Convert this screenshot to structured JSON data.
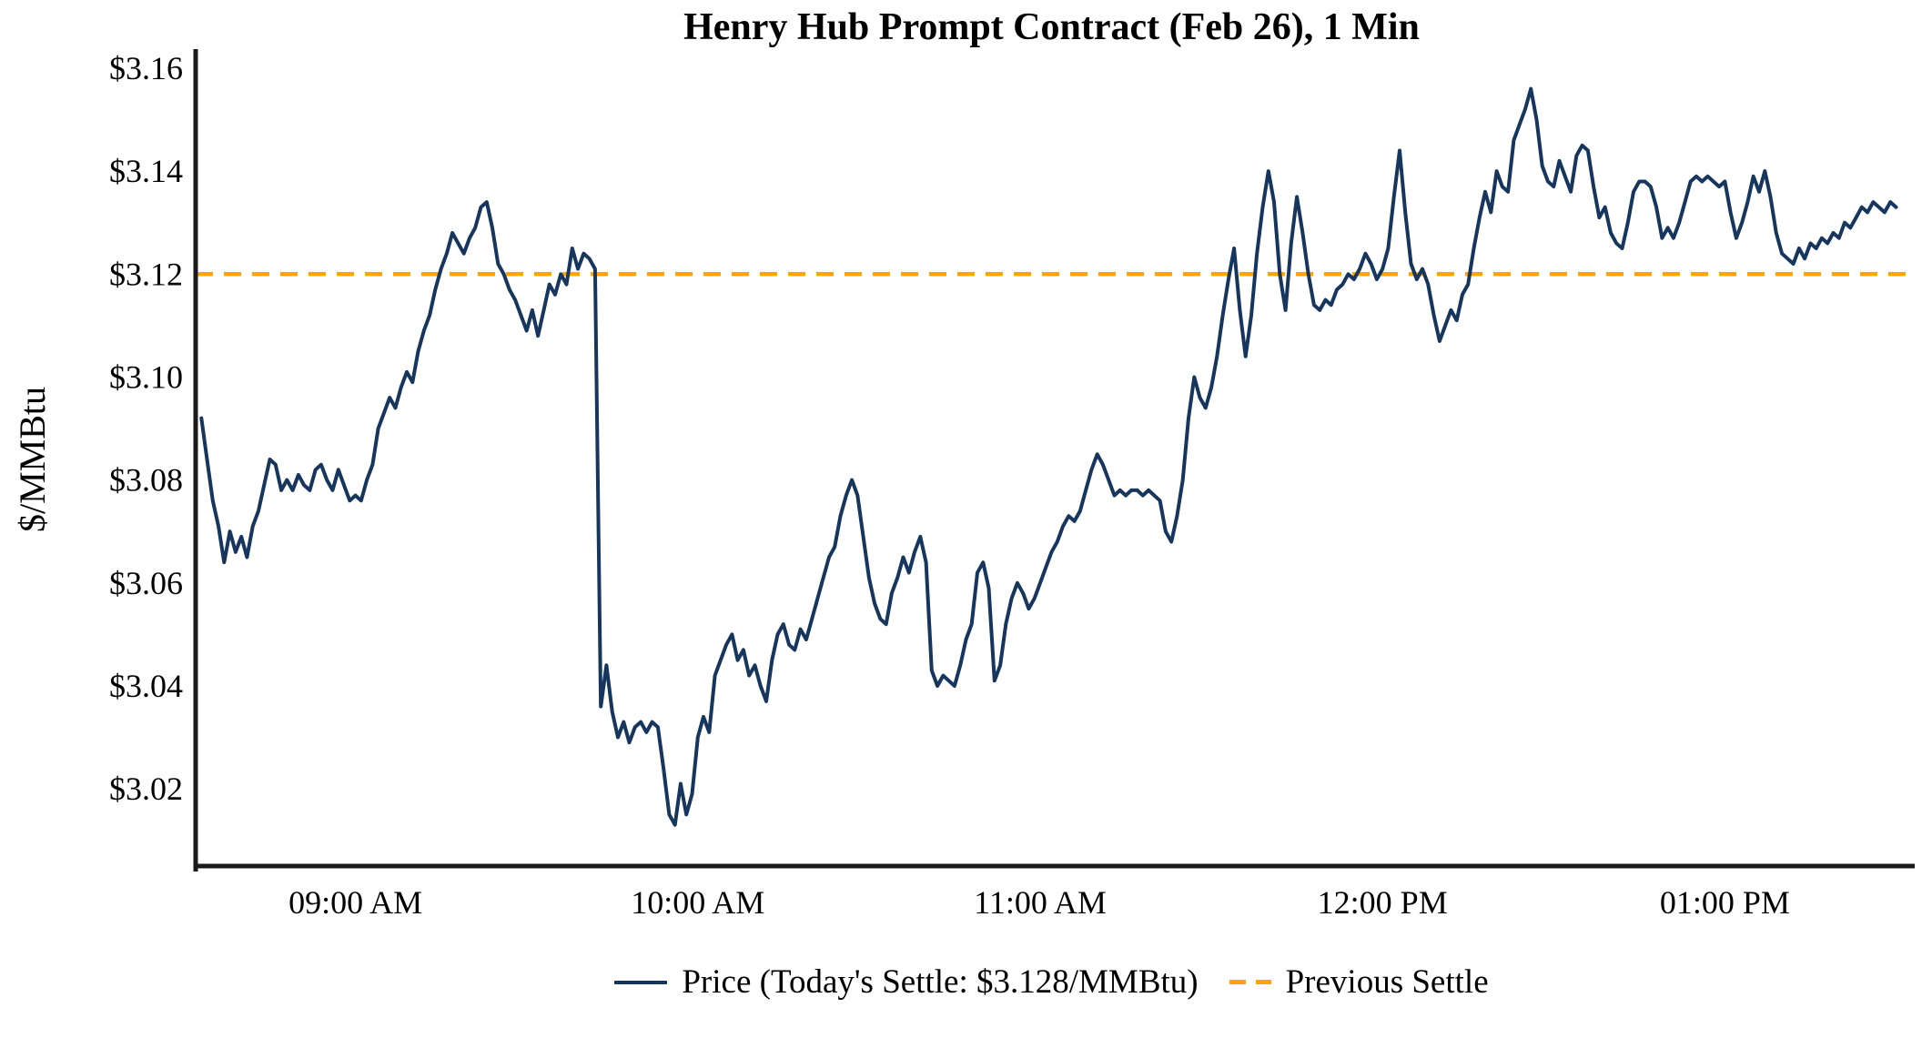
{
  "title": "Henry Hub Prompt Contract (Feb 26), 1 Min",
  "y_axis_label": "$/MMBtu",
  "legend": {
    "price_label": "Price (Today's Settle: $3.128/MMBtu)",
    "previous_settle_label": "Previous Settle"
  },
  "colors": {
    "price_line": "#17365d",
    "previous_settle": "#FFA500",
    "axis": "#1a1a1a",
    "text": "#000000"
  },
  "chart_data": {
    "type": "line",
    "title": "Henry Hub Prompt Contract (Feb 26), 1 Min",
    "xlabel": "",
    "ylabel": "$/MMBtu",
    "grid": false,
    "legend_position": "bottom",
    "x_unit": "minutes since midnight, 1-minute bars",
    "xlim": [
      512,
      812
    ],
    "ylim": [
      3.005,
      3.163
    ],
    "previous_settle": 3.12,
    "todays_settle": 3.128,
    "y_ticks": [
      {
        "value": 3.02,
        "label": "$3.02"
      },
      {
        "value": 3.04,
        "label": "$3.04"
      },
      {
        "value": 3.06,
        "label": "$3.06"
      },
      {
        "value": 3.08,
        "label": "$3.08"
      },
      {
        "value": 3.1,
        "label": "$3.10"
      },
      {
        "value": 3.12,
        "label": "$3.12"
      },
      {
        "value": 3.14,
        "label": "$3.14"
      },
      {
        "value": 3.16,
        "label": "$3.16"
      }
    ],
    "x_ticks": [
      {
        "value": 540,
        "label": "09:00 AM"
      },
      {
        "value": 600,
        "label": "10:00 AM"
      },
      {
        "value": 660,
        "label": "11:00 AM"
      },
      {
        "value": 720,
        "label": "12:00 PM"
      },
      {
        "value": 780,
        "label": "01:00 PM"
      }
    ],
    "series": [
      {
        "name": "Price",
        "points": [
          [
            513,
            3.092
          ],
          [
            514,
            3.084
          ],
          [
            515,
            3.076
          ],
          [
            516,
            3.071
          ],
          [
            517,
            3.064
          ],
          [
            518,
            3.07
          ],
          [
            519,
            3.066
          ],
          [
            520,
            3.069
          ],
          [
            521,
            3.065
          ],
          [
            522,
            3.071
          ],
          [
            523,
            3.074
          ],
          [
            524,
            3.079
          ],
          [
            525,
            3.084
          ],
          [
            526,
            3.083
          ],
          [
            527,
            3.078
          ],
          [
            528,
            3.08
          ],
          [
            529,
            3.078
          ],
          [
            530,
            3.081
          ],
          [
            531,
            3.079
          ],
          [
            532,
            3.078
          ],
          [
            533,
            3.082
          ],
          [
            534,
            3.083
          ],
          [
            535,
            3.08
          ],
          [
            536,
            3.078
          ],
          [
            537,
            3.082
          ],
          [
            538,
            3.079
          ],
          [
            539,
            3.076
          ],
          [
            540,
            3.077
          ],
          [
            541,
            3.076
          ],
          [
            542,
            3.08
          ],
          [
            543,
            3.083
          ],
          [
            544,
            3.09
          ],
          [
            545,
            3.093
          ],
          [
            546,
            3.096
          ],
          [
            547,
            3.094
          ],
          [
            548,
            3.098
          ],
          [
            549,
            3.101
          ],
          [
            550,
            3.099
          ],
          [
            551,
            3.105
          ],
          [
            552,
            3.109
          ],
          [
            553,
            3.112
          ],
          [
            554,
            3.117
          ],
          [
            555,
            3.121
          ],
          [
            556,
            3.124
          ],
          [
            557,
            3.128
          ],
          [
            558,
            3.126
          ],
          [
            559,
            3.124
          ],
          [
            560,
            3.127
          ],
          [
            561,
            3.129
          ],
          [
            562,
            3.133
          ],
          [
            563,
            3.134
          ],
          [
            564,
            3.129
          ],
          [
            565,
            3.122
          ],
          [
            566,
            3.12
          ],
          [
            567,
            3.117
          ],
          [
            568,
            3.115
          ],
          [
            569,
            3.112
          ],
          [
            570,
            3.109
          ],
          [
            571,
            3.113
          ],
          [
            572,
            3.108
          ],
          [
            573,
            3.113
          ],
          [
            574,
            3.118
          ],
          [
            575,
            3.116
          ],
          [
            576,
            3.12
          ],
          [
            577,
            3.118
          ],
          [
            578,
            3.125
          ],
          [
            579,
            3.121
          ],
          [
            580,
            3.124
          ],
          [
            581,
            3.123
          ],
          [
            582,
            3.121
          ],
          [
            583,
            3.036
          ],
          [
            584,
            3.044
          ],
          [
            585,
            3.035
          ],
          [
            586,
            3.03
          ],
          [
            587,
            3.033
          ],
          [
            588,
            3.029
          ],
          [
            589,
            3.032
          ],
          [
            590,
            3.033
          ],
          [
            591,
            3.031
          ],
          [
            592,
            3.033
          ],
          [
            593,
            3.032
          ],
          [
            594,
            3.024
          ],
          [
            595,
            3.015
          ],
          [
            596,
            3.013
          ],
          [
            597,
            3.021
          ],
          [
            598,
            3.015
          ],
          [
            599,
            3.019
          ],
          [
            600,
            3.03
          ],
          [
            601,
            3.034
          ],
          [
            602,
            3.031
          ],
          [
            603,
            3.042
          ],
          [
            604,
            3.045
          ],
          [
            605,
            3.048
          ],
          [
            606,
            3.05
          ],
          [
            607,
            3.045
          ],
          [
            608,
            3.047
          ],
          [
            609,
            3.042
          ],
          [
            610,
            3.044
          ],
          [
            611,
            3.04
          ],
          [
            612,
            3.037
          ],
          [
            613,
            3.045
          ],
          [
            614,
            3.05
          ],
          [
            615,
            3.052
          ],
          [
            616,
            3.048
          ],
          [
            617,
            3.047
          ],
          [
            618,
            3.051
          ],
          [
            619,
            3.049
          ],
          [
            620,
            3.053
          ],
          [
            621,
            3.057
          ],
          [
            622,
            3.061
          ],
          [
            623,
            3.065
          ],
          [
            624,
            3.067
          ],
          [
            625,
            3.073
          ],
          [
            626,
            3.077
          ],
          [
            627,
            3.08
          ],
          [
            628,
            3.077
          ],
          [
            629,
            3.069
          ],
          [
            630,
            3.061
          ],
          [
            631,
            3.056
          ],
          [
            632,
            3.053
          ],
          [
            633,
            3.052
          ],
          [
            634,
            3.058
          ],
          [
            635,
            3.061
          ],
          [
            636,
            3.065
          ],
          [
            637,
            3.062
          ],
          [
            638,
            3.066
          ],
          [
            639,
            3.069
          ],
          [
            640,
            3.064
          ],
          [
            641,
            3.043
          ],
          [
            642,
            3.04
          ],
          [
            643,
            3.042
          ],
          [
            644,
            3.041
          ],
          [
            645,
            3.04
          ],
          [
            646,
            3.044
          ],
          [
            647,
            3.049
          ],
          [
            648,
            3.052
          ],
          [
            649,
            3.062
          ],
          [
            650,
            3.064
          ],
          [
            651,
            3.059
          ],
          [
            652,
            3.041
          ],
          [
            653,
            3.044
          ],
          [
            654,
            3.052
          ],
          [
            655,
            3.057
          ],
          [
            656,
            3.06
          ],
          [
            657,
            3.058
          ],
          [
            658,
            3.055
          ],
          [
            659,
            3.057
          ],
          [
            660,
            3.06
          ],
          [
            661,
            3.063
          ],
          [
            662,
            3.066
          ],
          [
            663,
            3.068
          ],
          [
            664,
            3.071
          ],
          [
            665,
            3.073
          ],
          [
            666,
            3.072
          ],
          [
            667,
            3.074
          ],
          [
            668,
            3.078
          ],
          [
            669,
            3.082
          ],
          [
            670,
            3.085
          ],
          [
            671,
            3.083
          ],
          [
            672,
            3.08
          ],
          [
            673,
            3.077
          ],
          [
            674,
            3.078
          ],
          [
            675,
            3.077
          ],
          [
            676,
            3.078
          ],
          [
            677,
            3.078
          ],
          [
            678,
            3.077
          ],
          [
            679,
            3.078
          ],
          [
            680,
            3.077
          ],
          [
            681,
            3.076
          ],
          [
            682,
            3.07
          ],
          [
            683,
            3.068
          ],
          [
            684,
            3.073
          ],
          [
            685,
            3.08
          ],
          [
            686,
            3.092
          ],
          [
            687,
            3.1
          ],
          [
            688,
            3.096
          ],
          [
            689,
            3.094
          ],
          [
            690,
            3.098
          ],
          [
            691,
            3.104
          ],
          [
            692,
            3.112
          ],
          [
            693,
            3.119
          ],
          [
            694,
            3.125
          ],
          [
            695,
            3.113
          ],
          [
            696,
            3.104
          ],
          [
            697,
            3.112
          ],
          [
            698,
            3.124
          ],
          [
            699,
            3.133
          ],
          [
            700,
            3.14
          ],
          [
            701,
            3.134
          ],
          [
            702,
            3.12
          ],
          [
            703,
            3.113
          ],
          [
            704,
            3.126
          ],
          [
            705,
            3.135
          ],
          [
            706,
            3.128
          ],
          [
            707,
            3.12
          ],
          [
            708,
            3.114
          ],
          [
            709,
            3.113
          ],
          [
            710,
            3.115
          ],
          [
            711,
            3.114
          ],
          [
            712,
            3.117
          ],
          [
            713,
            3.118
          ],
          [
            714,
            3.12
          ],
          [
            715,
            3.119
          ],
          [
            716,
            3.121
          ],
          [
            717,
            3.124
          ],
          [
            718,
            3.122
          ],
          [
            719,
            3.119
          ],
          [
            720,
            3.121
          ],
          [
            721,
            3.125
          ],
          [
            722,
            3.135
          ],
          [
            723,
            3.144
          ],
          [
            724,
            3.132
          ],
          [
            725,
            3.122
          ],
          [
            726,
            3.119
          ],
          [
            727,
            3.121
          ],
          [
            728,
            3.118
          ],
          [
            729,
            3.112
          ],
          [
            730,
            3.107
          ],
          [
            731,
            3.11
          ],
          [
            732,
            3.113
          ],
          [
            733,
            3.111
          ],
          [
            734,
            3.116
          ],
          [
            735,
            3.118
          ],
          [
            736,
            3.125
          ],
          [
            737,
            3.131
          ],
          [
            738,
            3.136
          ],
          [
            739,
            3.132
          ],
          [
            740,
            3.14
          ],
          [
            741,
            3.137
          ],
          [
            742,
            3.136
          ],
          [
            743,
            3.146
          ],
          [
            744,
            3.149
          ],
          [
            745,
            3.152
          ],
          [
            746,
            3.156
          ],
          [
            747,
            3.15
          ],
          [
            748,
            3.141
          ],
          [
            749,
            3.138
          ],
          [
            750,
            3.137
          ],
          [
            751,
            3.142
          ],
          [
            752,
            3.139
          ],
          [
            753,
            3.136
          ],
          [
            754,
            3.143
          ],
          [
            755,
            3.145
          ],
          [
            756,
            3.144
          ],
          [
            757,
            3.137
          ],
          [
            758,
            3.131
          ],
          [
            759,
            3.133
          ],
          [
            760,
            3.128
          ],
          [
            761,
            3.126
          ],
          [
            762,
            3.125
          ],
          [
            763,
            3.13
          ],
          [
            764,
            3.136
          ],
          [
            765,
            3.138
          ],
          [
            766,
            3.138
          ],
          [
            767,
            3.137
          ],
          [
            768,
            3.133
          ],
          [
            769,
            3.127
          ],
          [
            770,
            3.129
          ],
          [
            771,
            3.127
          ],
          [
            772,
            3.13
          ],
          [
            773,
            3.134
          ],
          [
            774,
            3.138
          ],
          [
            775,
            3.139
          ],
          [
            776,
            3.138
          ],
          [
            777,
            3.139
          ],
          [
            778,
            3.138
          ],
          [
            779,
            3.137
          ],
          [
            780,
            3.138
          ],
          [
            781,
            3.132
          ],
          [
            782,
            3.127
          ],
          [
            783,
            3.13
          ],
          [
            784,
            3.134
          ],
          [
            785,
            3.139
          ],
          [
            786,
            3.136
          ],
          [
            787,
            3.14
          ],
          [
            788,
            3.135
          ],
          [
            789,
            3.128
          ],
          [
            790,
            3.124
          ],
          [
            791,
            3.123
          ],
          [
            792,
            3.122
          ],
          [
            793,
            3.125
          ],
          [
            794,
            3.123
          ],
          [
            795,
            3.126
          ],
          [
            796,
            3.125
          ],
          [
            797,
            3.127
          ],
          [
            798,
            3.126
          ],
          [
            799,
            3.128
          ],
          [
            800,
            3.127
          ],
          [
            801,
            3.13
          ],
          [
            802,
            3.129
          ],
          [
            803,
            3.131
          ],
          [
            804,
            3.133
          ],
          [
            805,
            3.132
          ],
          [
            806,
            3.134
          ],
          [
            807,
            3.133
          ],
          [
            808,
            3.132
          ],
          [
            809,
            3.134
          ],
          [
            810,
            3.133
          ]
        ]
      }
    ]
  }
}
